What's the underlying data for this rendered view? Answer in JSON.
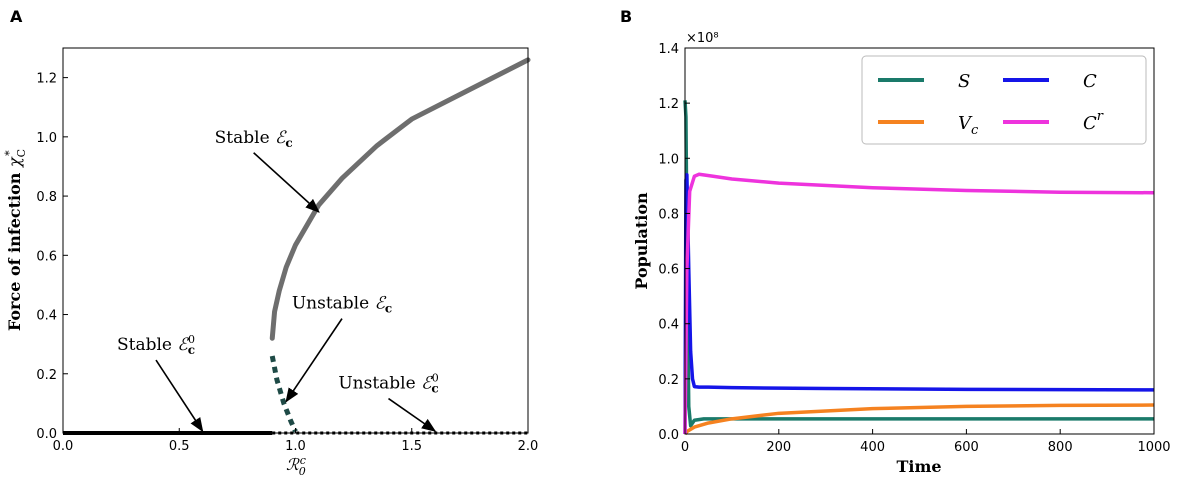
{
  "panels": {
    "a": "A",
    "b": "B"
  },
  "colors": {
    "stable": "#6e6e6e",
    "unstable": "#1e4a46",
    "S": "#1a7a6a",
    "Vc": "#f58220",
    "C": "#1515e8",
    "Cr": "#ee33dd"
  },
  "chart_data": [
    {
      "type": "line",
      "panel": "A",
      "xlabel": "ℛ₀ᶜ",
      "ylabel": "Force of infection χᴄ*",
      "xlim": [
        0,
        2
      ],
      "ylim": [
        0,
        1.3
      ],
      "xticks": [
        "0.0",
        "0.5",
        "1.0",
        "1.5",
        "2.0"
      ],
      "yticks": [
        "0.0",
        "0.2",
        "0.4",
        "0.6",
        "0.8",
        "1.0",
        "1.2"
      ],
      "series": [
        {
          "name": "Stable ℰc⁰",
          "style": "solid",
          "x": [
            0,
            0.9
          ],
          "y": [
            0,
            0
          ]
        },
        {
          "name": "Unstable ℰc⁰",
          "style": "dotted",
          "x": [
            0.9,
            2.0
          ],
          "y": [
            0,
            0
          ]
        },
        {
          "name": "Stable ℰc",
          "style": "solid",
          "x": [
            0.9,
            0.91,
            0.93,
            0.96,
            1.0,
            1.1,
            1.2,
            1.35,
            1.5,
            1.7,
            1.85,
            2.0
          ],
          "y": [
            0.32,
            0.41,
            0.48,
            0.56,
            0.635,
            0.77,
            0.86,
            0.97,
            1.06,
            1.14,
            1.2,
            1.26
          ]
        },
        {
          "name": "Unstable ℰc",
          "style": "dashed",
          "x": [
            0.9,
            0.92,
            0.95,
            0.98,
            1.0
          ],
          "y": [
            0.26,
            0.18,
            0.1,
            0.04,
            0.005
          ]
        }
      ],
      "annotations": [
        {
          "label": "Stable",
          "symbol": "ℰc",
          "text_at": [
            0.82,
            0.98
          ],
          "arrow_to": [
            1.1,
            0.74
          ]
        },
        {
          "label": "Unstable",
          "symbol": "ℰc",
          "text_at": [
            1.2,
            0.42
          ],
          "arrow_to": [
            0.96,
            0.1
          ]
        },
        {
          "label": "Stable",
          "symbol": "ℰc⁰",
          "text_at": [
            0.4,
            0.28
          ],
          "arrow_to": [
            0.6,
            0.0
          ]
        },
        {
          "label": "Unstable",
          "symbol": "ℰc⁰",
          "text_at": [
            1.4,
            0.15
          ],
          "arrow_to": [
            1.6,
            0.0
          ]
        }
      ]
    },
    {
      "type": "line",
      "panel": "B",
      "xlabel": "Time",
      "ylabel": "Population",
      "xlim": [
        0,
        1000
      ],
      "ylim": [
        0,
        1.4
      ],
      "y_multiplier": "×10⁸",
      "xticks": [
        "0",
        "200",
        "400",
        "600",
        "800",
        "1000"
      ],
      "yticks": [
        "0.0",
        "0.2",
        "0.4",
        "0.6",
        "0.8",
        "1.0",
        "1.2",
        "1.4"
      ],
      "series": [
        {
          "name": "S",
          "color_key": "S",
          "x": [
            0,
            2,
            5,
            8,
            12,
            20,
            40,
            100,
            400,
            1000
          ],
          "y": [
            1.21,
            1.15,
            0.55,
            0.1,
            0.03,
            0.05,
            0.055,
            0.055,
            0.055,
            0.055
          ]
        },
        {
          "name": "Vc",
          "color_key": "Vc",
          "x": [
            0,
            5,
            20,
            50,
            100,
            200,
            400,
            600,
            800,
            1000
          ],
          "y": [
            0.0,
            0.01,
            0.025,
            0.04,
            0.055,
            0.075,
            0.092,
            0.1,
            0.104,
            0.105
          ]
        },
        {
          "name": "C",
          "color_key": "C",
          "x": [
            0,
            2,
            4,
            8,
            12,
            16,
            20,
            30,
            50,
            100,
            300,
            600,
            1000
          ],
          "y": [
            0.0,
            0.92,
            0.94,
            0.6,
            0.3,
            0.2,
            0.172,
            0.17,
            0.17,
            0.168,
            0.165,
            0.162,
            0.16
          ]
        },
        {
          "name": "Cr",
          "color_key": "Cr",
          "x": [
            0,
            4,
            10,
            20,
            30,
            60,
            100,
            200,
            400,
            600,
            800,
            1000
          ],
          "y": [
            0.0,
            0.6,
            0.88,
            0.935,
            0.942,
            0.935,
            0.925,
            0.91,
            0.893,
            0.883,
            0.877,
            0.875
          ]
        }
      ],
      "legend": {
        "location": "top-right",
        "entries": [
          {
            "key": "S",
            "label": "S"
          },
          {
            "key": "C",
            "label": "C"
          },
          {
            "key": "Vc",
            "label": "V",
            "sub": "c"
          },
          {
            "key": "Cr",
            "label": "C",
            "sup": "r"
          }
        ]
      }
    }
  ]
}
